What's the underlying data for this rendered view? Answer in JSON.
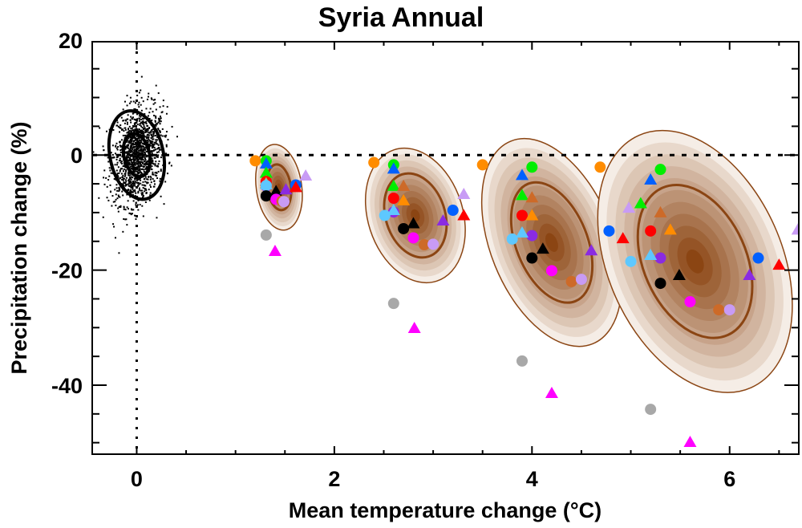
{
  "chart_data": {
    "type": "scatter",
    "title": "Syria Annual",
    "xlabel": "Mean temperature change (°C)",
    "ylabel": "Precipitation change (%)",
    "xlim": [
      -0.45,
      6.7
    ],
    "ylim": [
      -52,
      19.7
    ],
    "x_ticks": [
      0,
      2,
      4,
      6
    ],
    "x_tick_labels": [
      "0",
      "2",
      "4",
      "6"
    ],
    "x_minor_step": 0.5,
    "y_ticks": [
      20,
      0,
      -20,
      -40
    ],
    "y_tick_labels": [
      "20",
      "0",
      "-20",
      "-40"
    ],
    "y_minor_step": 5,
    "reference_lines": [
      {
        "axis": "x",
        "value": 0,
        "style": "dotted"
      },
      {
        "axis": "y",
        "value": 0,
        "style": "dotted"
      }
    ],
    "grid": false,
    "legend": "none",
    "colors": {
      "orange": "#ff8c00",
      "green": "#00ee00",
      "blue": "#0060ff",
      "red": "#ff0000",
      "brown": "#cd6a28",
      "lightblue": "#5ec8ff",
      "purple": "#8a2be2",
      "black": "#000000",
      "magenta": "#ff00ff",
      "lilac": "#c89bf5",
      "grey": "#a8a8a8",
      "contour_dark": "#8b4513",
      "contour_light": "#f5ede6"
    },
    "control_cloud": {
      "center": [
        0.0,
        0.0
      ],
      "ellipses": [
        {
          "sx": 0.13,
          "sy": 3.8,
          "angle": -12
        },
        {
          "sx": 0.27,
          "sy": 7.8,
          "angle": -12
        }
      ]
    },
    "distributions": [
      {
        "center": [
          1.44,
          -5.6
        ],
        "sx": 0.23,
        "sy": 7.5,
        "angle": -8,
        "inner_sx": 0.12,
        "inner_sy": 4.0
      },
      {
        "center": [
          2.82,
          -10.5
        ],
        "sx": 0.48,
        "sy": 12.0,
        "angle": -18,
        "inner_sx": 0.3,
        "inner_sy": 7.5
      },
      {
        "center": [
          4.2,
          -15.2
        ],
        "sx": 0.62,
        "sy": 19.0,
        "angle": -22,
        "inner_sx": 0.36,
        "inner_sy": 11.0
      },
      {
        "center": [
          5.65,
          -18.5
        ],
        "sx": 0.88,
        "sy": 24.0,
        "angle": -24,
        "inner_sx": 0.52,
        "inner_sy": 14.0
      }
    ],
    "series": [
      {
        "name": "orange-circle",
        "marker": "circle",
        "color": "orange",
        "points": [
          [
            1.2,
            -1.0
          ],
          [
            2.4,
            -1.3
          ],
          [
            3.5,
            -1.7
          ],
          [
            4.69,
            -2.1
          ]
        ]
      },
      {
        "name": "green-circle",
        "marker": "circle",
        "color": "green",
        "points": [
          [
            1.31,
            -1.0
          ],
          [
            2.6,
            -1.7
          ],
          [
            4.0,
            -2.1
          ],
          [
            5.3,
            -2.5
          ]
        ]
      },
      {
        "name": "blue-triangle",
        "marker": "triangle",
        "color": "blue",
        "points": [
          [
            1.31,
            -1.5
          ],
          [
            2.6,
            -2.4
          ],
          [
            3.9,
            -3.5
          ],
          [
            5.2,
            -4.3
          ]
        ]
      },
      {
        "name": "green-triangle",
        "marker": "triangle",
        "color": "green",
        "points": [
          [
            1.31,
            -3.1
          ],
          [
            2.6,
            -5.4
          ],
          [
            3.9,
            -7.0
          ],
          [
            5.1,
            -8.4
          ]
        ]
      },
      {
        "name": "brown-triangle",
        "marker": "triangle",
        "color": "brown",
        "points": [
          [
            1.31,
            -4.5
          ],
          [
            2.7,
            -5.4
          ],
          [
            4.0,
            -7.4
          ],
          [
            5.3,
            -10.0
          ]
        ]
      },
      {
        "name": "red-circle",
        "marker": "circle",
        "color": "red",
        "points": [
          [
            1.31,
            -4.6
          ],
          [
            2.6,
            -7.5
          ],
          [
            3.9,
            -10.5
          ],
          [
            5.2,
            -13.2
          ]
        ]
      },
      {
        "name": "orange-triangle",
        "marker": "triangle",
        "color": "orange",
        "points": [
          [
            1.31,
            -4.9
          ],
          [
            2.7,
            -7.9
          ],
          [
            4.0,
            -10.5
          ],
          [
            5.4,
            -13.0
          ]
        ]
      },
      {
        "name": "purple-circle",
        "marker": "circle",
        "color": "purple",
        "points": [
          [
            1.31,
            -5.4
          ],
          [
            2.6,
            -9.9
          ],
          [
            4.0,
            -14.0
          ],
          [
            5.3,
            -17.9
          ]
        ]
      },
      {
        "name": "lightblue-triangle",
        "marker": "triangle",
        "color": "lightblue",
        "points": [
          [
            1.31,
            -5.1
          ],
          [
            2.6,
            -9.6
          ],
          [
            3.9,
            -13.5
          ],
          [
            5.2,
            -17.4
          ]
        ]
      },
      {
        "name": "lightblue-circle",
        "marker": "circle",
        "color": "lightblue",
        "points": [
          [
            1.31,
            -5.3
          ],
          [
            2.51,
            -10.5
          ],
          [
            3.8,
            -14.6
          ],
          [
            5.0,
            -18.5
          ]
        ]
      },
      {
        "name": "black-triangle",
        "marker": "triangle",
        "color": "black",
        "points": [
          [
            1.41,
            -6.3
          ],
          [
            2.8,
            -11.9
          ],
          [
            4.11,
            -16.3
          ],
          [
            5.49,
            -20.9
          ]
        ]
      },
      {
        "name": "black-circle",
        "marker": "circle",
        "color": "black",
        "points": [
          [
            1.31,
            -7.1
          ],
          [
            2.7,
            -12.8
          ],
          [
            4.0,
            -17.9
          ],
          [
            5.3,
            -22.3
          ]
        ]
      },
      {
        "name": "magenta-circle",
        "marker": "circle",
        "color": "magenta",
        "points": [
          [
            1.41,
            -7.7
          ],
          [
            2.8,
            -14.4
          ],
          [
            4.2,
            -20.1
          ],
          [
            5.6,
            -25.5
          ]
        ]
      },
      {
        "name": "brown-circle",
        "marker": "circle",
        "color": "brown",
        "points": [
          [
            1.47,
            -8.0
          ],
          [
            2.91,
            -15.6
          ],
          [
            4.4,
            -22.0
          ],
          [
            5.89,
            -26.9
          ]
        ]
      },
      {
        "name": "lilac-circle",
        "marker": "circle",
        "color": "lilac",
        "points": [
          [
            1.49,
            -8.1
          ],
          [
            3.0,
            -15.5
          ],
          [
            4.5,
            -21.6
          ],
          [
            6.0,
            -26.9
          ]
        ]
      },
      {
        "name": "purple-triangle",
        "marker": "triangle",
        "color": "purple",
        "points": [
          [
            1.51,
            -6.0
          ],
          [
            3.1,
            -11.4
          ],
          [
            4.6,
            -16.6
          ],
          [
            6.2,
            -20.9
          ]
        ]
      },
      {
        "name": "blue-circle",
        "marker": "circle",
        "color": "blue",
        "points": [
          [
            1.61,
            -5.2
          ],
          [
            3.2,
            -9.6
          ],
          [
            4.78,
            -13.2
          ],
          [
            6.29,
            -17.9
          ]
        ]
      },
      {
        "name": "red-triangle",
        "marker": "triangle",
        "color": "red",
        "points": [
          [
            1.61,
            -5.6
          ],
          [
            3.31,
            -10.5
          ],
          [
            4.92,
            -14.5
          ],
          [
            6.5,
            -19.1
          ]
        ]
      },
      {
        "name": "lilac-triangle",
        "marker": "triangle",
        "color": "lilac",
        "points": [
          [
            1.71,
            -3.6
          ],
          [
            3.31,
            -6.8
          ],
          [
            4.98,
            -9.2
          ],
          [
            6.69,
            -13.0
          ]
        ]
      },
      {
        "name": "grey-circle",
        "marker": "circle",
        "color": "grey",
        "points": [
          [
            1.31,
            -13.9
          ],
          [
            2.6,
            -25.8
          ],
          [
            3.9,
            -35.8
          ],
          [
            5.2,
            -44.2
          ]
        ]
      },
      {
        "name": "magenta-triangle",
        "marker": "triangle",
        "color": "magenta",
        "points": [
          [
            1.4,
            -16.7
          ],
          [
            2.81,
            -30.1
          ],
          [
            4.2,
            -41.4
          ],
          [
            5.6,
            -49.9
          ]
        ]
      }
    ]
  }
}
